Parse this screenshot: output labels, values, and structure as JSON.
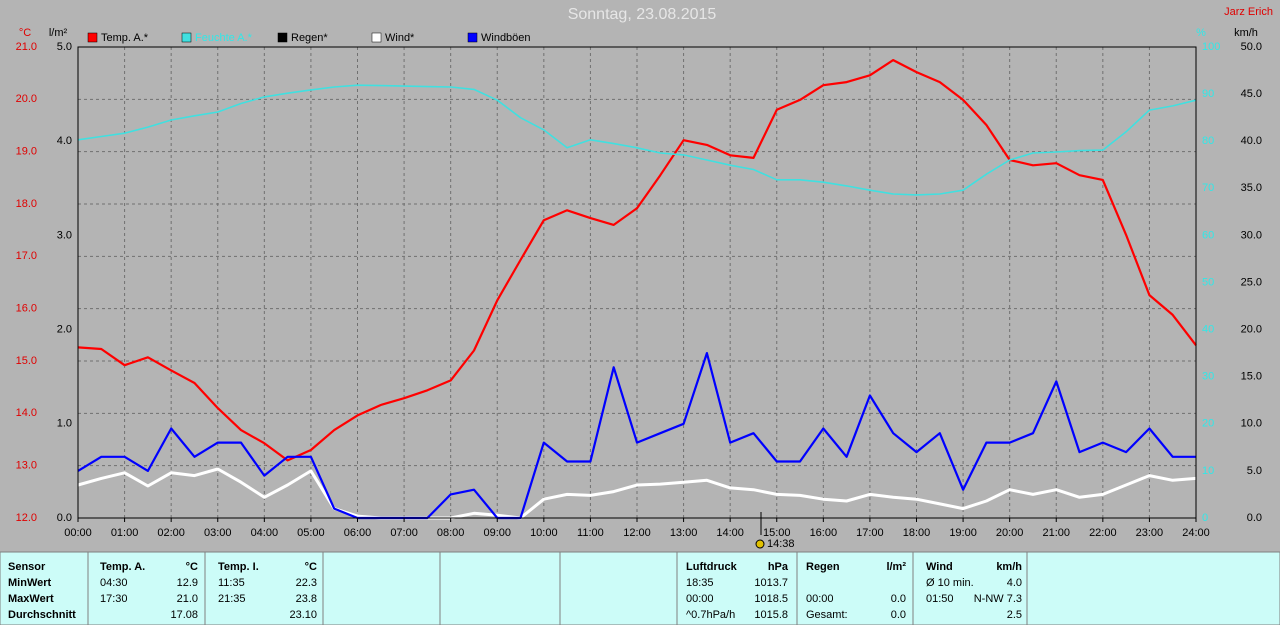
{
  "chart_data": {
    "type": "line",
    "title": "Sonntag, 23.08.2015",
    "author": "Jarz Erich",
    "marker": "14:38",
    "ylabel": "°C",
    "y2label": "l/m²",
    "y3label": "%",
    "y4label": "km/h",
    "x": [
      0,
      0.5,
      1,
      1.5,
      2,
      2.5,
      3,
      3.5,
      4,
      4.5,
      5,
      5.5,
      6,
      6.5,
      7,
      7.5,
      8,
      8.5,
      9,
      9.5,
      10,
      10.5,
      11,
      11.5,
      12,
      12.5,
      13,
      13.5,
      14,
      14.5,
      15,
      15.5,
      16,
      16.5,
      17,
      17.5,
      18,
      18.5,
      19,
      19.5,
      20,
      20.5,
      21,
      21.5,
      22,
      22.5,
      23,
      23.5,
      24
    ],
    "xlim": [
      0,
      24
    ],
    "xticks": [
      {
        "value": 0,
        "label": "00:00"
      },
      {
        "value": 1,
        "label": "01:00"
      },
      {
        "value": 2,
        "label": "02:00"
      },
      {
        "value": 3,
        "label": "03:00"
      },
      {
        "value": 4,
        "label": "04:00"
      },
      {
        "value": 5,
        "label": "05:00"
      },
      {
        "value": 6,
        "label": "06:00"
      },
      {
        "value": 7,
        "label": "07:00"
      },
      {
        "value": 8,
        "label": "08:00"
      },
      {
        "value": 9,
        "label": "09:00"
      },
      {
        "value": 10,
        "label": "10:00"
      },
      {
        "value": 11,
        "label": "11:00"
      },
      {
        "value": 12,
        "label": "12:00"
      },
      {
        "value": 13,
        "label": "13:00"
      },
      {
        "value": 14,
        "label": "14:00"
      },
      {
        "value": 15,
        "label": "15:00"
      },
      {
        "value": 16,
        "label": "16:00"
      },
      {
        "value": 17,
        "label": "17:00"
      },
      {
        "value": 18,
        "label": "18:00"
      },
      {
        "value": 19,
        "label": "19:00"
      },
      {
        "value": 20,
        "label": "20:00"
      },
      {
        "value": 21,
        "label": "21:00"
      },
      {
        "value": 22,
        "label": "22:00"
      },
      {
        "value": 23,
        "label": "23:00"
      },
      {
        "value": 24,
        "label": "24:00"
      }
    ],
    "ylim": [
      12,
      21
    ],
    "yticks": [
      {
        "value": 12,
        "label": "12.0"
      },
      {
        "value": 13,
        "label": "13.0"
      },
      {
        "value": 14,
        "label": "14.0"
      },
      {
        "value": 15,
        "label": "15.0"
      },
      {
        "value": 16,
        "label": "16.0"
      },
      {
        "value": 17,
        "label": "17.0"
      },
      {
        "value": 18,
        "label": "18.0"
      },
      {
        "value": 19,
        "label": "19.0"
      },
      {
        "value": 20,
        "label": "20.0"
      },
      {
        "value": 21,
        "label": "21.0"
      }
    ],
    "y2lim": [
      0,
      5
    ],
    "y2ticks": [
      {
        "value": 0,
        "label": "0.0"
      },
      {
        "value": 1,
        "label": "1.0"
      },
      {
        "value": 2,
        "label": "2.0"
      },
      {
        "value": 3,
        "label": "3.0"
      },
      {
        "value": 4,
        "label": "4.0"
      },
      {
        "value": 5,
        "label": "5.0"
      }
    ],
    "y3lim": [
      0,
      100
    ],
    "y3ticks": [
      0,
      10,
      20,
      30,
      40,
      50,
      60,
      70,
      80,
      90,
      100
    ],
    "y4lim": [
      0,
      50
    ],
    "y4ticks": [
      {
        "value": 0,
        "label": "0.0"
      },
      {
        "value": 5,
        "label": "5.0"
      },
      {
        "value": 10,
        "label": "10.0"
      },
      {
        "value": 15,
        "label": "15.0"
      },
      {
        "value": 20,
        "label": "20.0"
      },
      {
        "value": 25,
        "label": "25.0"
      },
      {
        "value": 30,
        "label": "30.0"
      },
      {
        "value": 35,
        "label": "35.0"
      },
      {
        "value": 40,
        "label": "40.0"
      },
      {
        "value": 45,
        "label": "45.0"
      },
      {
        "value": 50,
        "label": "50.0"
      }
    ],
    "grid": true,
    "series": [
      {
        "name": "Temp. A.*",
        "color": "#ff0000",
        "axis": "y",
        "values": [
          15.26,
          15.23,
          14.92,
          15.07,
          14.82,
          14.58,
          14.1,
          13.68,
          13.43,
          13.1,
          13.3,
          13.68,
          13.96,
          14.16,
          14.29,
          14.44,
          14.63,
          15.2,
          16.16,
          16.93,
          17.69,
          17.88,
          17.73,
          17.6,
          17.92,
          18.55,
          19.22,
          19.13,
          18.93,
          18.88,
          19.8,
          19.99,
          20.27,
          20.33,
          20.46,
          20.75,
          20.52,
          20.33,
          19.99,
          19.51,
          18.84,
          18.74,
          18.78,
          18.55,
          18.46,
          17.41,
          16.26,
          15.88,
          15.3
        ]
      },
      {
        "name": "Feuchte A.*",
        "color": "#40e0e0",
        "axis": "y3",
        "values": [
          80.3,
          81,
          81.7,
          83,
          84.5,
          85.4,
          86.2,
          88,
          89.4,
          90.2,
          90.9,
          91.5,
          91.9,
          91.8,
          91.7,
          91.6,
          91.5,
          91,
          88.7,
          85,
          82.4,
          78.6,
          80.3,
          79.5,
          78.6,
          77.5,
          77.1,
          76,
          74.9,
          74,
          71.8,
          71.8,
          71.3,
          70.5,
          69.6,
          68.8,
          68.6,
          68.8,
          69.6,
          73,
          76,
          77.5,
          77.7,
          78,
          78.1,
          82,
          86.6,
          87.5,
          88.7
        ]
      },
      {
        "name": "Regen*",
        "color": "#000000",
        "axis": "y2",
        "values": [
          0,
          0,
          0,
          0,
          0,
          0,
          0,
          0,
          0,
          0,
          0,
          0,
          0,
          0,
          0,
          0,
          0,
          0,
          0,
          0,
          0,
          0,
          0,
          0,
          0,
          0,
          0,
          0,
          0,
          0,
          0,
          0,
          0,
          0,
          0,
          0,
          0,
          0,
          0,
          0,
          0,
          0,
          0,
          0,
          0,
          0,
          0,
          0,
          0
        ]
      },
      {
        "name": "Wind*",
        "color": "#ffffff",
        "axis": "y4",
        "values": [
          3.5,
          4.2,
          4.8,
          3.4,
          4.8,
          4.5,
          5.2,
          3.8,
          2.2,
          3.5,
          5.0,
          1.0,
          0.2,
          0,
          0,
          0,
          0,
          0.5,
          0.3,
          0,
          2.0,
          2.5,
          2.4,
          2.8,
          3.5,
          3.6,
          3.8,
          4.0,
          3.2,
          3.0,
          2.5,
          2.4,
          2.0,
          1.8,
          2.5,
          2.2,
          2.0,
          1.5,
          1.0,
          1.8,
          3.0,
          2.5,
          3.0,
          2.2,
          2.5,
          3.5,
          4.5,
          4.0,
          4.2
        ]
      },
      {
        "name": "Windböen",
        "color": "#0000ff",
        "axis": "y4",
        "values": [
          5,
          6.5,
          6.5,
          5,
          9.5,
          6.5,
          8,
          8,
          4.5,
          6.5,
          6.5,
          1,
          0,
          0,
          0,
          0,
          2.5,
          3,
          0,
          0,
          8,
          6,
          6,
          16,
          8,
          9,
          10,
          17.5,
          8,
          9,
          6,
          6,
          9.5,
          6.5,
          13,
          9,
          7,
          9,
          3,
          8,
          8,
          9,
          14.5,
          7,
          8,
          7,
          9.5,
          6.5,
          6.5
        ]
      }
    ]
  },
  "table": {
    "header": {
      "label": "Sensor",
      "ta_time": "Temp. A.",
      "ta_val": "°C",
      "ti_time": "Temp. I.",
      "ti_val": "°C",
      "p_time": "Luftdruck",
      "p_val": "hPa",
      "r_time": "Regen",
      "r_val": "l/m²",
      "w_time": "Wind",
      "w_val": "km/h"
    },
    "rows": [
      {
        "label": "MinWert",
        "ta_time": "04:30",
        "ta_val": "12.9",
        "ti_time": "11:35",
        "ti_val": "22.3",
        "p_time": "18:35",
        "p_val": "1013.7",
        "w_time": "Ø 10 min.",
        "w_val": "4.0"
      },
      {
        "label": "MaxWert",
        "ta_time": "17:30",
        "ta_val": "21.0",
        "ti_time": "21:35",
        "ti_val": "23.8",
        "p_time": "00:00",
        "p_val": "1018.5",
        "r_time": "00:00",
        "r_val": "0.0",
        "w_time": "01:50",
        "w_val": "N-NW 7.3"
      },
      {
        "label": "Durchschnitt",
        "ta_val": "17.08",
        "ti_val": "23.10",
        "p_time": "^0.7hPa/h",
        "p_val": "1015.8",
        "r_time": "Gesamt:",
        "r_val": "0.0",
        "w_val": "2.5"
      }
    ]
  }
}
